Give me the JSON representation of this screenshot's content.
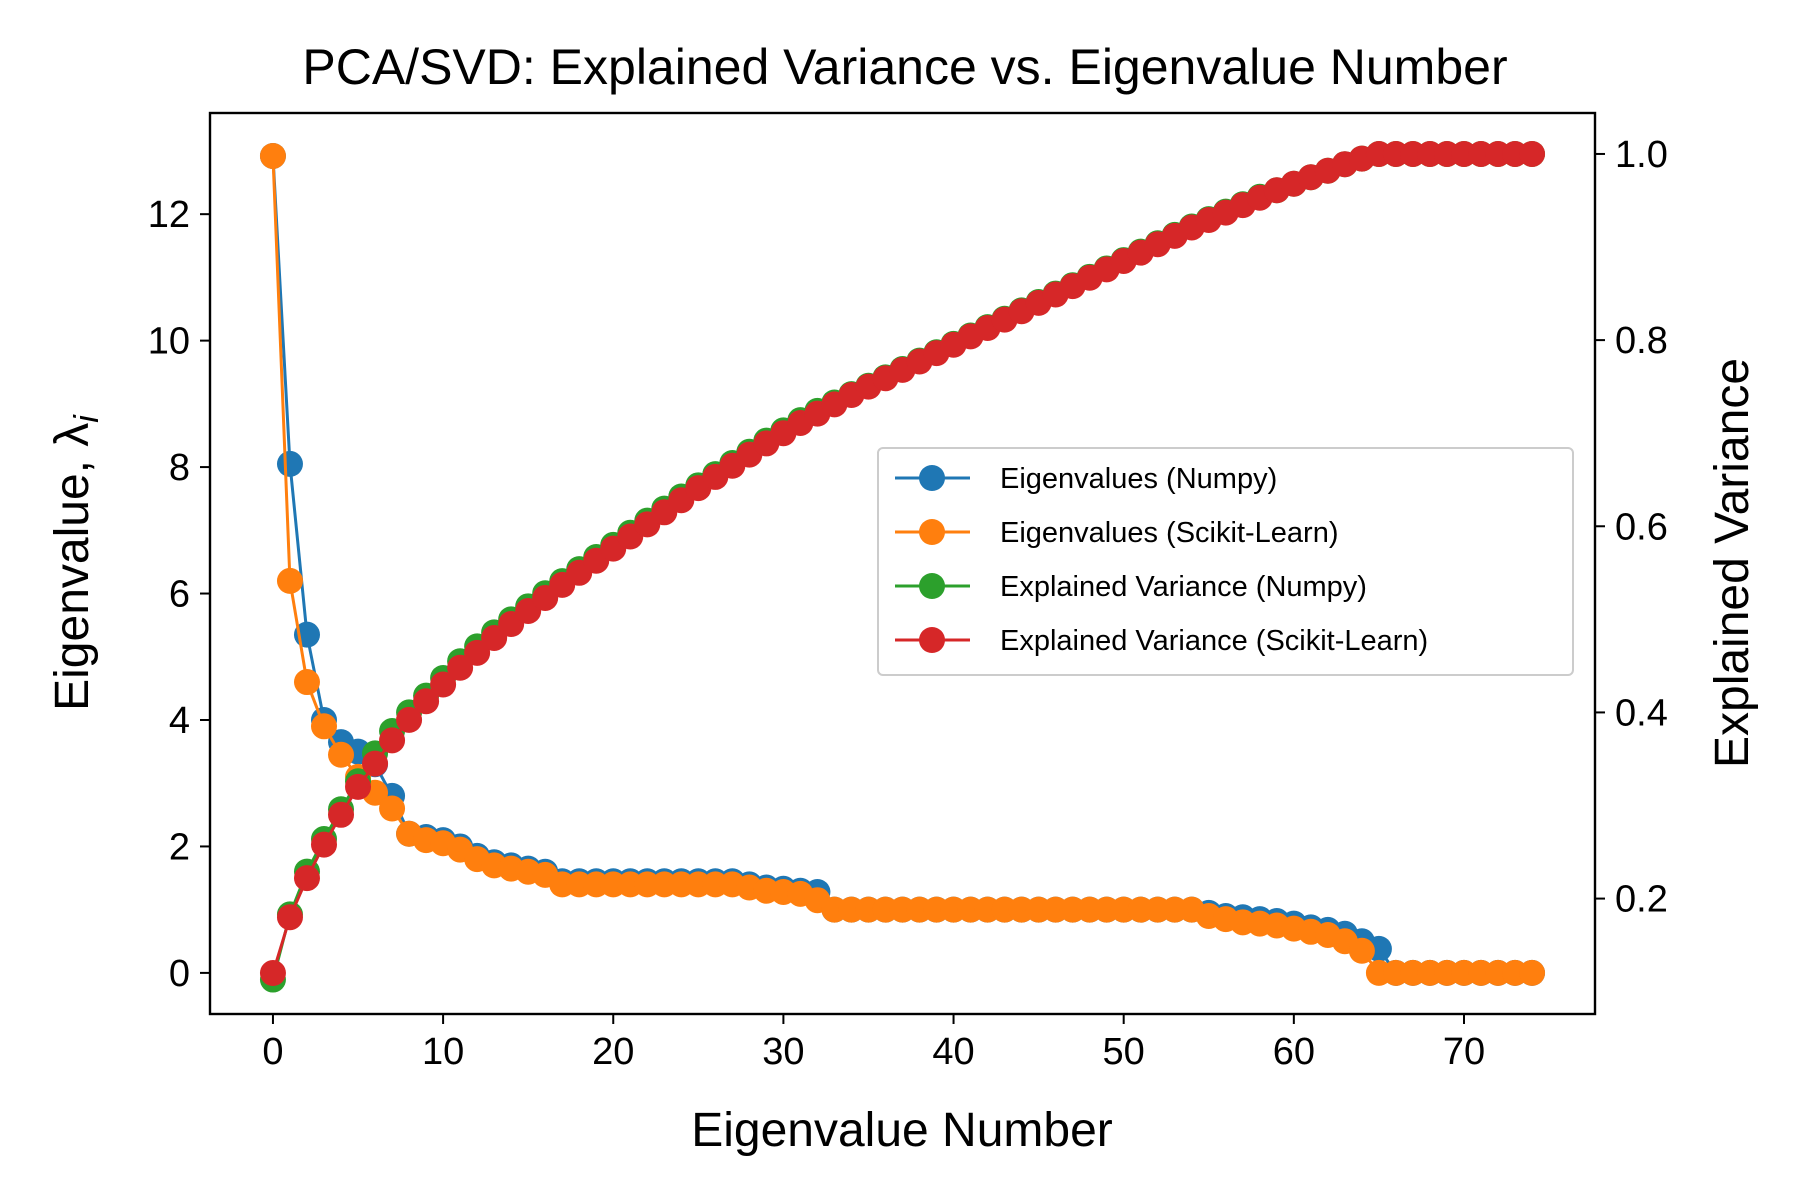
{
  "chart_data": {
    "type": "line",
    "title": "PCA/SVD: Explained Variance vs. Eigenvalue Number",
    "xlabel": "Eigenvalue Number",
    "ylabel_left": "Eigenvalue, λ",
    "ylabel_left_subscript": "i",
    "ylabel_right": "Explained Variance",
    "xlim": [
      -3.7,
      77.7
    ],
    "ylim_left": [
      -0.65,
      13.6
    ],
    "ylim_right": [
      0.076,
      1.044
    ],
    "x_ticks": [
      0,
      10,
      20,
      30,
      40,
      50,
      60,
      70
    ],
    "y_left_ticks": [
      0,
      2,
      4,
      6,
      8,
      10,
      12
    ],
    "y_right_ticks": [
      0.2,
      0.4,
      0.6,
      0.8,
      1.0
    ],
    "y_right_tick_labels": [
      "0.2",
      "0.4",
      "0.6",
      "0.8",
      "1.0"
    ],
    "legend_placement": "center-right",
    "series": [
      {
        "name": "Eigenvalues (Numpy)",
        "axis": "left",
        "color": "#1f77b4",
        "values": [
          12.92,
          8.05,
          5.35,
          4.0,
          3.65,
          3.5,
          3.3,
          2.8,
          2.2,
          2.15,
          2.1,
          2.0,
          1.85,
          1.75,
          1.7,
          1.65,
          1.6,
          1.45,
          1.45,
          1.45,
          1.45,
          1.45,
          1.45,
          1.45,
          1.45,
          1.45,
          1.45,
          1.45,
          1.4,
          1.35,
          1.33,
          1.3,
          1.28,
          1.0,
          1.0,
          1.0,
          1.0,
          1.0,
          1.0,
          1.0,
          1.0,
          1.0,
          1.0,
          1.0,
          1.0,
          1.0,
          1.0,
          1.0,
          1.0,
          1.0,
          1.0,
          1.0,
          1.0,
          1.0,
          1.0,
          0.95,
          0.9,
          0.88,
          0.85,
          0.82,
          0.78,
          0.72,
          0.68,
          0.62,
          0.5,
          0.38,
          0.0,
          0.0,
          0.0,
          0.0,
          0.0,
          0.0,
          0.0,
          0.0,
          0.0
        ]
      },
      {
        "name": "Eigenvalues (Scikit-Learn)",
        "axis": "left",
        "color": "#ff7f0e",
        "values": [
          12.92,
          6.2,
          4.6,
          3.9,
          3.45,
          3.1,
          2.85,
          2.6,
          2.2,
          2.1,
          2.05,
          1.95,
          1.8,
          1.7,
          1.65,
          1.6,
          1.55,
          1.4,
          1.4,
          1.4,
          1.4,
          1.4,
          1.4,
          1.4,
          1.4,
          1.4,
          1.4,
          1.4,
          1.35,
          1.3,
          1.28,
          1.25,
          1.15,
          1.0,
          1.0,
          1.0,
          1.0,
          1.0,
          1.0,
          1.0,
          1.0,
          1.0,
          1.0,
          1.0,
          1.0,
          1.0,
          1.0,
          1.0,
          1.0,
          1.0,
          1.0,
          1.0,
          1.0,
          1.0,
          1.0,
          0.9,
          0.85,
          0.8,
          0.78,
          0.75,
          0.7,
          0.65,
          0.6,
          0.5,
          0.35,
          0.0,
          0.0,
          0.0,
          0.0,
          0.0,
          0.0,
          0.0,
          0.0,
          0.0,
          0.0
        ]
      },
      {
        "name": "Explained Variance (Numpy)",
        "axis": "right",
        "color": "#2ca02c",
        "values": [
          0.113,
          0.183,
          0.229,
          0.264,
          0.296,
          0.326,
          0.356,
          0.38,
          0.4,
          0.418,
          0.437,
          0.455,
          0.471,
          0.486,
          0.5,
          0.514,
          0.528,
          0.541,
          0.554,
          0.567,
          0.58,
          0.593,
          0.606,
          0.619,
          0.632,
          0.644,
          0.656,
          0.668,
          0.68,
          0.692,
          0.703,
          0.714,
          0.724,
          0.733,
          0.742,
          0.751,
          0.76,
          0.769,
          0.778,
          0.787,
          0.796,
          0.805,
          0.814,
          0.823,
          0.832,
          0.841,
          0.85,
          0.859,
          0.868,
          0.877,
          0.886,
          0.895,
          0.904,
          0.913,
          0.922,
          0.93,
          0.938,
          0.946,
          0.954,
          0.961,
          0.968,
          0.975,
          0.982,
          0.989,
          0.995,
          1.0,
          1.0,
          1.0,
          1.0,
          1.0,
          1.0,
          1.0,
          1.0,
          1.0,
          1.0
        ]
      },
      {
        "name": "Explained Variance (Scikit-Learn)",
        "axis": "right",
        "color": "#d62728",
        "values": [
          0.12,
          0.18,
          0.222,
          0.258,
          0.29,
          0.32,
          0.345,
          0.37,
          0.392,
          0.412,
          0.43,
          0.448,
          0.464,
          0.48,
          0.495,
          0.509,
          0.523,
          0.537,
          0.55,
          0.563,
          0.576,
          0.589,
          0.602,
          0.615,
          0.628,
          0.641,
          0.653,
          0.665,
          0.677,
          0.689,
          0.7,
          0.711,
          0.721,
          0.731,
          0.741,
          0.75,
          0.759,
          0.768,
          0.777,
          0.786,
          0.795,
          0.804,
          0.813,
          0.822,
          0.831,
          0.84,
          0.849,
          0.858,
          0.867,
          0.876,
          0.885,
          0.894,
          0.903,
          0.912,
          0.921,
          0.929,
          0.937,
          0.945,
          0.953,
          0.961,
          0.968,
          0.975,
          0.982,
          0.989,
          0.995,
          1.0,
          1.0,
          1.0,
          1.0,
          1.0,
          1.0,
          1.0,
          1.0,
          1.0,
          1.0
        ]
      }
    ]
  }
}
